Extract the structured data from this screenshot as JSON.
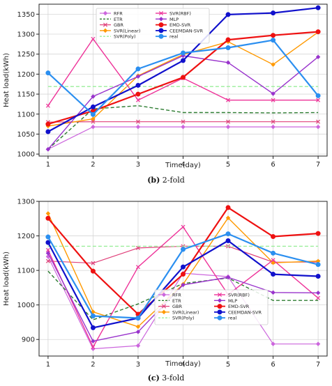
{
  "chart_data": [
    {
      "type": "line",
      "caption_label": "(b)",
      "caption_text": " 2-fold",
      "xlabel": "Time(day)",
      "ylabel": "Heat load(kWh)",
      "x": [
        1,
        2,
        3,
        4,
        5,
        6,
        7
      ],
      "xlim": [
        0.8,
        7.2
      ],
      "ylim": [
        995,
        1375
      ],
      "yticks": [
        1000,
        1050,
        1100,
        1150,
        1200,
        1250,
        1300,
        1350
      ],
      "grid": true,
      "legend_position": "top-left",
      "series": [
        {
          "name": "RFR",
          "color": "#cc66dd",
          "dash": "solid",
          "marker": "diamond",
          "width": 1.2,
          "values": [
            1012,
            1068,
            1068,
            1068,
            1068,
            1068,
            1068
          ]
        },
        {
          "name": "ETR",
          "color": "#2e7d32",
          "dash": "dashed",
          "marker": "none",
          "width": 1.4,
          "values": [
            1012,
            1113,
            1121,
            1104,
            1104,
            1103,
            1104
          ]
        },
        {
          "name": "GBR",
          "color": "#e0407a",
          "dash": "solid",
          "marker": "x",
          "width": 1.2,
          "values": [
            1080,
            1081,
            1081,
            1081,
            1081,
            1081,
            1081
          ]
        },
        {
          "name": "SVR(Linear)",
          "color": "#ff9900",
          "dash": "solid",
          "marker": "diamond",
          "width": 1.4,
          "values": [
            1070,
            1088,
            1196,
            1249,
            1281,
            1224,
            1305
          ]
        },
        {
          "name": "SVR(Poly)",
          "color": "#99ee99",
          "dash": "dashed",
          "marker": "none",
          "width": 1.4,
          "values": [
            1169,
            1169,
            1169,
            1169,
            1169,
            1169,
            1169
          ]
        },
        {
          "name": "SVR(RBF)",
          "color": "#ee3399",
          "dash": "solid",
          "marker": "x",
          "width": 1.4,
          "values": [
            1121,
            1288,
            1135,
            1190,
            1135,
            1135,
            1135
          ]
        },
        {
          "name": "MLP",
          "color": "#9933cc",
          "dash": "solid",
          "marker": "diamond",
          "width": 1.4,
          "values": [
            1012,
            1144,
            1194,
            1246,
            1229,
            1151,
            1243
          ]
        },
        {
          "name": "EMD-SVR",
          "color": "#ee1111",
          "dash": "solid",
          "marker": "circle",
          "width": 2.2,
          "values": [
            1075,
            1108,
            1150,
            1192,
            1286,
            1297,
            1306
          ]
        },
        {
          "name": "CEEMDAN-SVR",
          "color": "#1111cc",
          "dash": "solid",
          "marker": "circle",
          "width": 2.2,
          "values": [
            1056,
            1118,
            1172,
            1234,
            1349,
            1353,
            1366
          ]
        },
        {
          "name": "real",
          "color": "#2b8ff0",
          "dash": "solid",
          "marker": "circle",
          "width": 2.2,
          "values": [
            1203,
            1099,
            1213,
            1253,
            1266,
            1285,
            1146
          ]
        }
      ]
    },
    {
      "type": "line",
      "caption_label": "(c)",
      "caption_text": " 3-fold",
      "xlabel": "Time(day)",
      "ylabel": "Heat load(kWh)",
      "x": [
        1,
        2,
        3,
        4,
        5,
        6,
        7
      ],
      "xlim": [
        0.8,
        7.2
      ],
      "ylim": [
        852,
        1300
      ],
      "yticks": [
        900,
        1000,
        1100,
        1200,
        1300
      ],
      "grid": true,
      "legend_position": "bottom-center",
      "series": [
        {
          "name": "RFR",
          "color": "#cc66dd",
          "dash": "solid",
          "marker": "diamond",
          "width": 1.2,
          "values": [
            1140,
            873,
            882,
            1092,
            1082,
            887,
            887
          ]
        },
        {
          "name": "ETR",
          "color": "#2e7d32",
          "dash": "dashed",
          "marker": "none",
          "width": 1.4,
          "values": [
            1098,
            957,
            1003,
            1062,
            1078,
            1013,
            1013
          ]
        },
        {
          "name": "GBR",
          "color": "#e0407a",
          "dash": "solid",
          "marker": "x",
          "width": 1.2,
          "values": [
            1127,
            1121,
            1165,
            1170,
            1170,
            1124,
            1124
          ]
        },
        {
          "name": "SVR(Linear)",
          "color": "#ff9900",
          "dash": "solid",
          "marker": "diamond",
          "width": 1.4,
          "values": [
            1265,
            980,
            937,
            1060,
            1252,
            1122,
            1127
          ]
        },
        {
          "name": "SVR(Poly)",
          "color": "#99ee99",
          "dash": "dashed",
          "marker": "none",
          "width": 1.4,
          "values": [
            1170,
            1170,
            1170,
            1170,
            1170,
            1170,
            1170
          ]
        },
        {
          "name": "SVR(RBF)",
          "color": "#ee3399",
          "dash": "solid",
          "marker": "x",
          "width": 1.4,
          "values": [
            1159,
            878,
            1110,
            1226,
            1030,
            1130,
            1020
          ]
        },
        {
          "name": "MLP",
          "color": "#9933cc",
          "dash": "solid",
          "marker": "diamond",
          "width": 1.4,
          "values": [
            1150,
            895,
            922,
            1058,
            1080,
            1036,
            1035
          ]
        },
        {
          "name": "EMD-SVR",
          "color": "#ee1111",
          "dash": "solid",
          "marker": "circle",
          "width": 2.2,
          "values": [
            1251,
            1098,
            973,
            1089,
            1282,
            1198,
            1207
          ]
        },
        {
          "name": "CEEMDAN-SVR",
          "color": "#1111cc",
          "dash": "solid",
          "marker": "circle",
          "width": 2.2,
          "values": [
            1181,
            934,
            962,
            1110,
            1186,
            1089,
            1083
          ]
        },
        {
          "name": "real",
          "color": "#2b8ff0",
          "dash": "solid",
          "marker": "circle",
          "width": 2.2,
          "values": [
            1197,
            968,
            962,
            1161,
            1206,
            1150,
            1117
          ]
        }
      ]
    }
  ]
}
